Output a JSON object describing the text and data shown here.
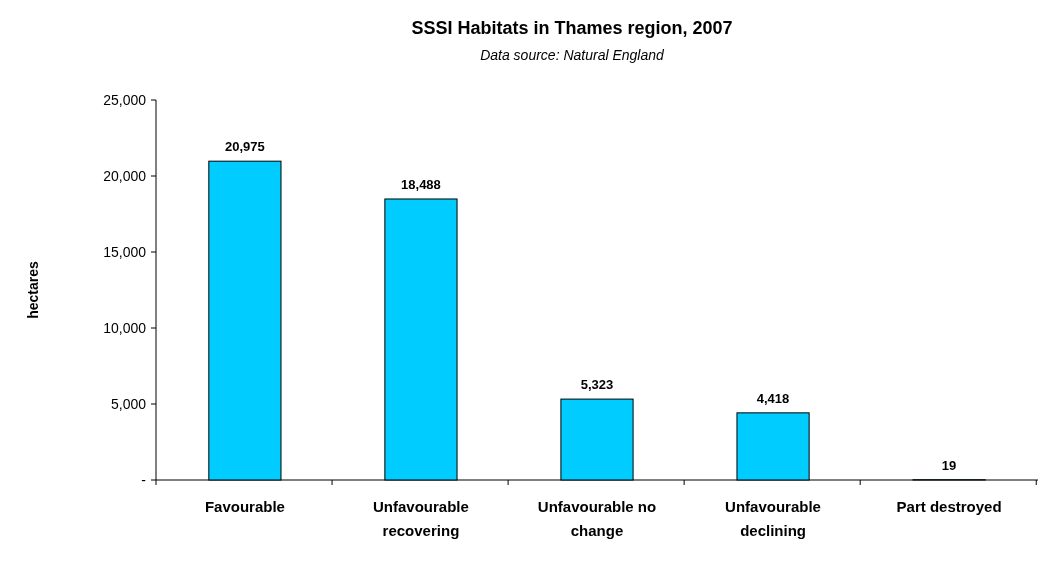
{
  "chart_data": {
    "type": "bar",
    "title": "SSSI Habitats in Thames region, 2007",
    "subtitle": "Data source: Natural England",
    "ylabel": "hectares",
    "categories": [
      "Favourable",
      "Unfavourable recovering",
      "Unfavourable no change",
      "Unfavourable declining",
      "Part destroyed"
    ],
    "values": [
      20975,
      18488,
      5323,
      4418,
      19
    ],
    "value_labels": [
      "20,975",
      "18,488",
      "5,323",
      "4,418",
      "19"
    ],
    "color": "#00ccff",
    "ylim": [
      0,
      25000
    ],
    "yticks": [
      {
        "value": 0,
        "label": "-"
      },
      {
        "value": 5000,
        "label": "5,000"
      },
      {
        "value": 10000,
        "label": "10,000"
      },
      {
        "value": 15000,
        "label": "15,000"
      },
      {
        "value": 20000,
        "label": "20,000"
      },
      {
        "value": 25000,
        "label": "25,000"
      }
    ],
    "grid": false
  }
}
